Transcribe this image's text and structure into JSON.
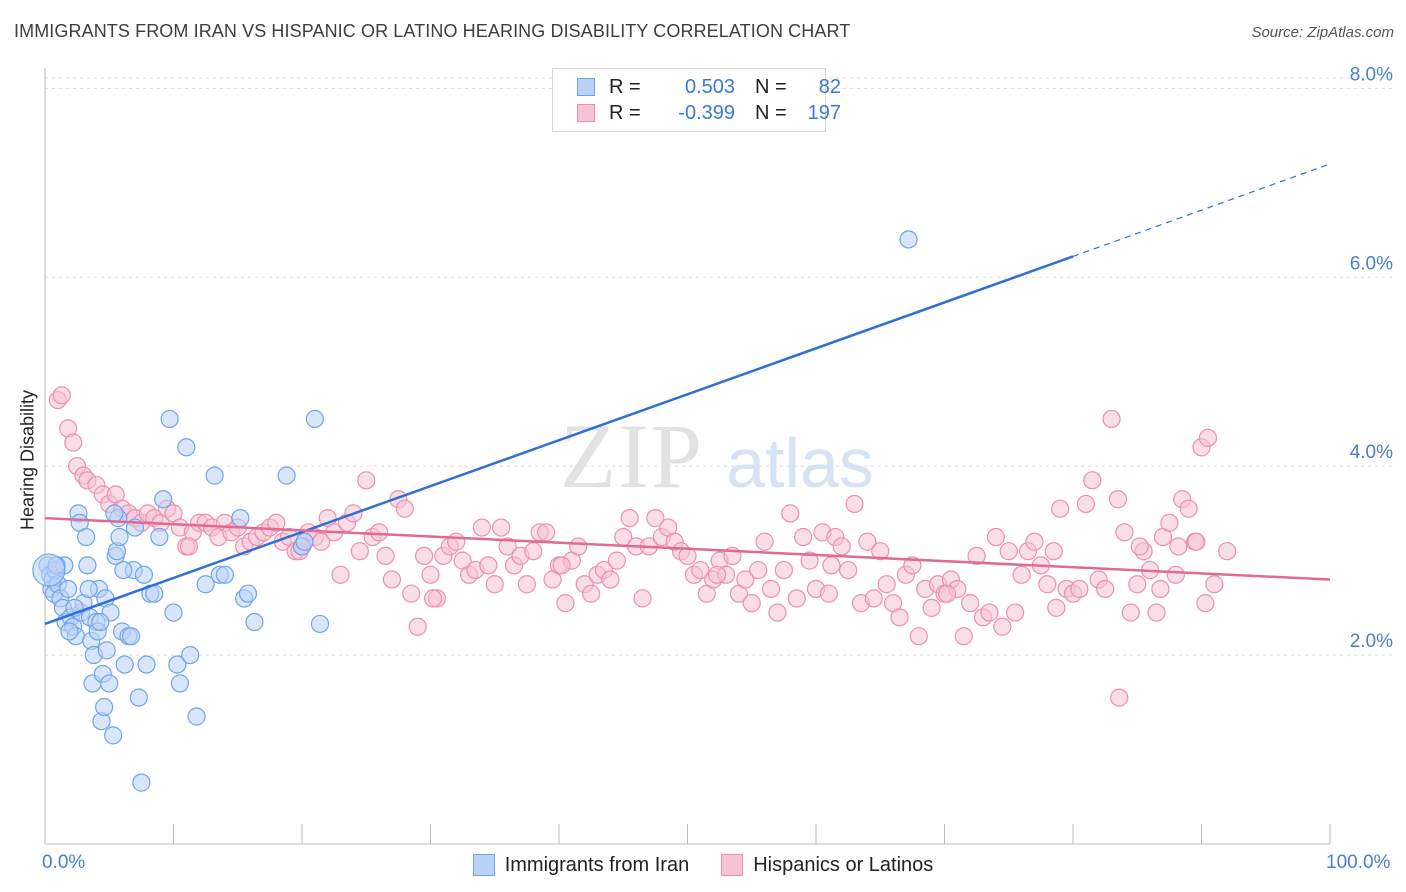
{
  "title": "IMMIGRANTS FROM IRAN VS HISPANIC OR LATINO HEARING DISABILITY CORRELATION CHART",
  "source": "Source: ZipAtlas.com",
  "legend": {
    "r_label": "R =",
    "n_label": "N =",
    "rows": [
      {
        "r": "0.503",
        "n": "82"
      },
      {
        "r": "-0.399",
        "n": "197"
      }
    ]
  },
  "chart_data": {
    "type": "scatter",
    "title": "IMMIGRANTS FROM IRAN VS HISPANIC OR LATINO HEARING DISABILITY CORRELATION CHART",
    "ylabel": "Hearing Disability",
    "xlabel": "",
    "xlim": [
      0,
      100
    ],
    "ylim": [
      0.0,
      8.3
    ],
    "y_ticks": [
      "2.0%",
      "4.0%",
      "6.0%",
      "8.0%"
    ],
    "y_tick_values": [
      2,
      4,
      6,
      8
    ],
    "x_tick_labels": [
      "0.0%",
      "100.0%"
    ],
    "watermark": "ZIPatlas",
    "grid": "horizontal dashed",
    "legend_position": "top-center",
    "series": [
      {
        "name": "Immigrants from Iran",
        "color": "#6fa4ec",
        "fill": "#b9d2f6",
        "trend": {
          "x0": 0,
          "y0": 2.33,
          "x1": 80,
          "y1": 6.22,
          "dash_to_x": 100,
          "dash_to_y": 7.2,
          "color": "#2f6fd6"
        },
        "points": [
          [
            0.2,
            2.95
          ],
          [
            0.4,
            2.85
          ],
          [
            0.5,
            2.7
          ],
          [
            0.6,
            2.8
          ],
          [
            0.7,
            2.65
          ],
          [
            0.8,
            2.9
          ],
          [
            1.0,
            2.75
          ],
          [
            1.2,
            2.6
          ],
          [
            1.4,
            2.5
          ],
          [
            1.5,
            2.95
          ],
          [
            1.6,
            2.35
          ],
          [
            1.8,
            2.7
          ],
          [
            2.0,
            2.4
          ],
          [
            2.2,
            2.3
          ],
          [
            2.4,
            2.2
          ],
          [
            2.6,
            3.5
          ],
          [
            2.7,
            3.4
          ],
          [
            2.8,
            2.45
          ],
          [
            3.0,
            2.55
          ],
          [
            3.2,
            3.25
          ],
          [
            3.3,
            2.95
          ],
          [
            3.5,
            2.4
          ],
          [
            3.6,
            2.15
          ],
          [
            3.7,
            1.7
          ],
          [
            3.8,
            2.0
          ],
          [
            4.0,
            2.35
          ],
          [
            4.1,
            2.25
          ],
          [
            4.2,
            2.7
          ],
          [
            4.4,
            1.3
          ],
          [
            4.5,
            1.8
          ],
          [
            4.6,
            1.45
          ],
          [
            4.7,
            2.6
          ],
          [
            4.8,
            2.05
          ],
          [
            5.0,
            1.7
          ],
          [
            5.1,
            2.45
          ],
          [
            5.3,
            1.15
          ],
          [
            5.5,
            3.05
          ],
          [
            5.6,
            3.1
          ],
          [
            5.7,
            3.45
          ],
          [
            5.8,
            3.25
          ],
          [
            6.0,
            2.25
          ],
          [
            6.2,
            1.9
          ],
          [
            6.5,
            2.2
          ],
          [
            6.7,
            2.2
          ],
          [
            6.9,
            2.9
          ],
          [
            7.0,
            3.35
          ],
          [
            7.3,
            1.55
          ],
          [
            7.5,
            0.65
          ],
          [
            7.7,
            2.85
          ],
          [
            7.9,
            1.9
          ],
          [
            8.2,
            2.65
          ],
          [
            8.5,
            2.65
          ],
          [
            8.9,
            3.25
          ],
          [
            9.2,
            3.65
          ],
          [
            9.7,
            4.5
          ],
          [
            10.0,
            2.45
          ],
          [
            10.3,
            1.9
          ],
          [
            10.5,
            1.7
          ],
          [
            11.0,
            4.2
          ],
          [
            11.3,
            2.0
          ],
          [
            11.8,
            1.35
          ],
          [
            12.5,
            2.75
          ],
          [
            13.2,
            3.9
          ],
          [
            13.6,
            2.85
          ],
          [
            14.0,
            2.85
          ],
          [
            15.2,
            3.45
          ],
          [
            15.5,
            2.6
          ],
          [
            15.8,
            2.65
          ],
          [
            16.3,
            2.35
          ],
          [
            18.8,
            3.9
          ],
          [
            20.0,
            3.15
          ],
          [
            20.2,
            3.2
          ],
          [
            21.0,
            4.5
          ],
          [
            21.4,
            2.33
          ],
          [
            67.2,
            6.4
          ],
          [
            0.9,
            2.95
          ],
          [
            1.9,
            2.25
          ],
          [
            2.3,
            2.5
          ],
          [
            3.4,
            2.7
          ],
          [
            4.3,
            2.35
          ],
          [
            5.4,
            3.5
          ],
          [
            6.1,
            2.9
          ]
        ]
      },
      {
        "name": "Hispanics or Latinos",
        "color": "#ee8fae",
        "fill": "#f6c3d4",
        "trend": {
          "x0": 0,
          "y0": 3.45,
          "x1": 100,
          "y1": 2.8,
          "color": "#e06a95"
        },
        "points": [
          [
            1.0,
            4.7
          ],
          [
            1.3,
            4.75
          ],
          [
            1.8,
            4.4
          ],
          [
            2.2,
            4.25
          ],
          [
            2.5,
            4.0
          ],
          [
            3.0,
            3.9
          ],
          [
            3.3,
            3.85
          ],
          [
            4.0,
            3.8
          ],
          [
            4.5,
            3.7
          ],
          [
            5.0,
            3.6
          ],
          [
            5.5,
            3.7
          ],
          [
            6.0,
            3.55
          ],
          [
            6.5,
            3.5
          ],
          [
            7.0,
            3.45
          ],
          [
            7.5,
            3.4
          ],
          [
            8.0,
            3.5
          ],
          [
            8.5,
            3.45
          ],
          [
            9.0,
            3.4
          ],
          [
            9.5,
            3.55
          ],
          [
            10.0,
            3.5
          ],
          [
            10.5,
            3.35
          ],
          [
            11.0,
            3.15
          ],
          [
            11.5,
            3.3
          ],
          [
            12.0,
            3.4
          ],
          [
            12.5,
            3.4
          ],
          [
            13.0,
            3.35
          ],
          [
            13.5,
            3.25
          ],
          [
            14.0,
            3.4
          ],
          [
            14.5,
            3.3
          ],
          [
            15.0,
            3.35
          ],
          [
            15.5,
            3.15
          ],
          [
            16.0,
            3.2
          ],
          [
            16.5,
            3.25
          ],
          [
            17.0,
            3.3
          ],
          [
            17.5,
            3.35
          ],
          [
            18.0,
            3.4
          ],
          [
            18.5,
            3.2
          ],
          [
            19.0,
            3.25
          ],
          [
            19.5,
            3.1
          ],
          [
            20.0,
            3.15
          ],
          [
            20.5,
            3.3
          ],
          [
            21.0,
            3.25
          ],
          [
            21.5,
            3.2
          ],
          [
            22.0,
            3.45
          ],
          [
            22.5,
            3.3
          ],
          [
            23.0,
            2.85
          ],
          [
            23.5,
            3.4
          ],
          [
            24.0,
            3.5
          ],
          [
            24.5,
            3.1
          ],
          [
            25.0,
            3.85
          ],
          [
            25.5,
            3.25
          ],
          [
            26.0,
            3.3
          ],
          [
            26.5,
            3.05
          ],
          [
            27.0,
            2.8
          ],
          [
            27.5,
            3.65
          ],
          [
            28.0,
            3.55
          ],
          [
            28.5,
            2.65
          ],
          [
            29.0,
            2.3
          ],
          [
            29.5,
            3.05
          ],
          [
            30.0,
            2.85
          ],
          [
            30.5,
            2.6
          ],
          [
            31.0,
            3.05
          ],
          [
            31.5,
            3.15
          ],
          [
            32.0,
            3.2
          ],
          [
            32.5,
            3.0
          ],
          [
            33.0,
            2.85
          ],
          [
            33.5,
            2.9
          ],
          [
            34.0,
            3.35
          ],
          [
            34.5,
            2.95
          ],
          [
            35.0,
            2.75
          ],
          [
            35.5,
            3.35
          ],
          [
            36.0,
            3.15
          ],
          [
            36.5,
            2.95
          ],
          [
            37.0,
            3.05
          ],
          [
            37.5,
            2.75
          ],
          [
            38.0,
            3.1
          ],
          [
            38.5,
            3.3
          ],
          [
            39.0,
            3.3
          ],
          [
            39.5,
            2.8
          ],
          [
            40.0,
            2.95
          ],
          [
            40.5,
            2.55
          ],
          [
            41.0,
            3.0
          ],
          [
            41.5,
            3.15
          ],
          [
            42.0,
            2.75
          ],
          [
            42.5,
            2.65
          ],
          [
            43.0,
            2.85
          ],
          [
            43.5,
            2.9
          ],
          [
            44.0,
            2.8
          ],
          [
            44.5,
            3.0
          ],
          [
            45.0,
            3.25
          ],
          [
            45.5,
            3.45
          ],
          [
            46.0,
            3.15
          ],
          [
            46.5,
            2.6
          ],
          [
            47.0,
            3.15
          ],
          [
            47.5,
            3.45
          ],
          [
            48.0,
            3.25
          ],
          [
            48.5,
            3.35
          ],
          [
            49.0,
            3.2
          ],
          [
            49.5,
            3.1
          ],
          [
            50.0,
            3.05
          ],
          [
            50.5,
            2.85
          ],
          [
            51.0,
            2.9
          ],
          [
            51.5,
            2.65
          ],
          [
            52.0,
            2.8
          ],
          [
            52.5,
            3.0
          ],
          [
            53.0,
            2.85
          ],
          [
            53.5,
            3.05
          ],
          [
            54.0,
            2.65
          ],
          [
            54.5,
            2.8
          ],
          [
            55.0,
            2.55
          ],
          [
            55.5,
            2.9
          ],
          [
            56.0,
            3.2
          ],
          [
            56.5,
            2.7
          ],
          [
            57.0,
            2.45
          ],
          [
            57.5,
            2.9
          ],
          [
            58.0,
            3.5
          ],
          [
            58.5,
            2.6
          ],
          [
            59.0,
            3.25
          ],
          [
            59.5,
            3.0
          ],
          [
            60.0,
            2.7
          ],
          [
            60.5,
            3.3
          ],
          [
            61.0,
            2.65
          ],
          [
            61.5,
            3.25
          ],
          [
            62.0,
            3.15
          ],
          [
            62.5,
            2.9
          ],
          [
            63.0,
            3.6
          ],
          [
            63.5,
            2.55
          ],
          [
            64.0,
            3.2
          ],
          [
            64.5,
            2.6
          ],
          [
            65.0,
            3.1
          ],
          [
            65.5,
            2.75
          ],
          [
            66.0,
            2.55
          ],
          [
            66.5,
            2.4
          ],
          [
            67.0,
            2.85
          ],
          [
            67.5,
            2.95
          ],
          [
            68.0,
            2.2
          ],
          [
            68.5,
            2.7
          ],
          [
            69.0,
            2.5
          ],
          [
            69.5,
            2.75
          ],
          [
            70.0,
            2.65
          ],
          [
            70.5,
            2.8
          ],
          [
            71.0,
            2.7
          ],
          [
            71.5,
            2.2
          ],
          [
            72.0,
            2.55
          ],
          [
            72.5,
            3.05
          ],
          [
            73.0,
            2.4
          ],
          [
            73.5,
            2.45
          ],
          [
            74.0,
            3.25
          ],
          [
            74.5,
            2.3
          ],
          [
            75.0,
            3.1
          ],
          [
            75.5,
            2.45
          ],
          [
            76.0,
            2.85
          ],
          [
            76.5,
            3.1
          ],
          [
            77.0,
            3.2
          ],
          [
            77.5,
            2.95
          ],
          [
            78.0,
            2.75
          ],
          [
            78.5,
            3.1
          ],
          [
            79.0,
            3.55
          ],
          [
            79.5,
            2.7
          ],
          [
            80.0,
            2.65
          ],
          [
            80.5,
            2.7
          ],
          [
            81.0,
            3.6
          ],
          [
            81.5,
            3.85
          ],
          [
            82.0,
            2.8
          ],
          [
            82.5,
            2.7
          ],
          [
            83.0,
            4.5
          ],
          [
            83.5,
            3.65
          ],
          [
            84.0,
            3.3
          ],
          [
            84.5,
            2.45
          ],
          [
            85.0,
            2.75
          ],
          [
            85.5,
            3.1
          ],
          [
            86.0,
            2.9
          ],
          [
            86.5,
            2.45
          ],
          [
            87.0,
            3.25
          ],
          [
            87.5,
            3.4
          ],
          [
            88.0,
            2.85
          ],
          [
            88.5,
            3.65
          ],
          [
            89.0,
            3.55
          ],
          [
            89.5,
            3.2
          ],
          [
            90.0,
            4.2
          ],
          [
            90.5,
            4.3
          ],
          [
            83.6,
            1.55
          ],
          [
            11.2,
            3.15
          ],
          [
            19.8,
            3.1
          ],
          [
            30.2,
            2.6
          ],
          [
            40.2,
            2.95
          ],
          [
            52.3,
            2.85
          ],
          [
            61.2,
            2.95
          ],
          [
            70.2,
            2.65
          ],
          [
            78.7,
            2.5
          ],
          [
            85.2,
            3.15
          ],
          [
            86.8,
            2.7
          ],
          [
            88.2,
            3.15
          ],
          [
            89.6,
            3.2
          ],
          [
            90.3,
            2.55
          ],
          [
            91.0,
            2.75
          ],
          [
            92.0,
            3.1
          ]
        ]
      }
    ]
  }
}
